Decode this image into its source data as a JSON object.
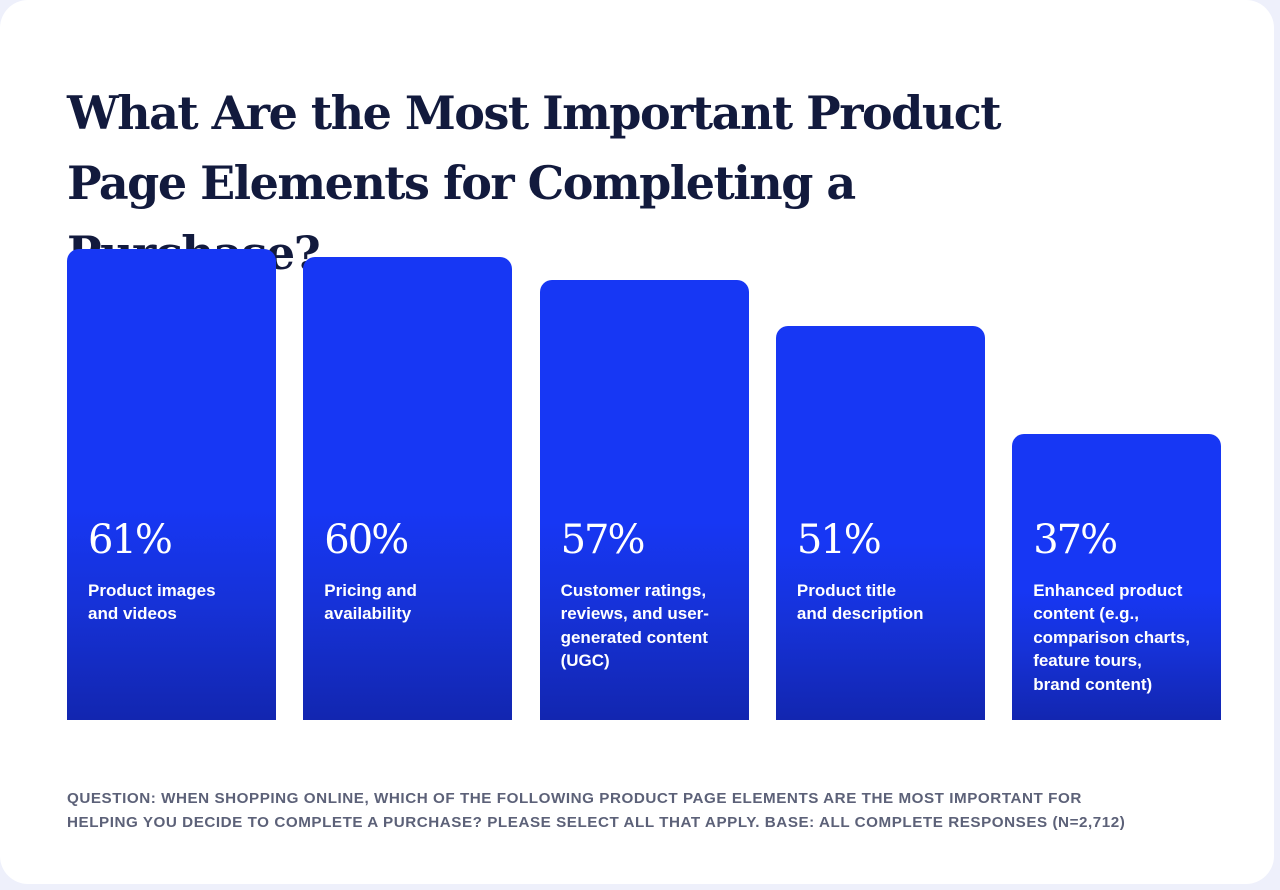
{
  "colors": {
    "bar_top": "#1737f4",
    "bar_bottom": "#1226b0",
    "title": "#121a3d",
    "footnote": "#5c6178",
    "card": "#ffffff",
    "page_background": "#eef0fb"
  },
  "chart_data": {
    "type": "bar",
    "title": "What Are the Most Important Product Page Elements for Completing a Purchase?",
    "unit": "%",
    "ylim": [
      0,
      61
    ],
    "grid": false,
    "categories": [
      "Product images\nand videos",
      "Pricing and\navailability",
      "Customer ratings,\nreviews, and user-\ngenerated content\n(UGC)",
      "Product title\nand description",
      "Enhanced product\ncontent (e.g.,\ncomparison charts,\nfeature tours,\nbrand content)"
    ],
    "values": [
      61,
      60,
      57,
      51,
      37
    ],
    "value_labels": [
      "61%",
      "60%",
      "57%",
      "51%",
      "37%"
    ]
  },
  "footnote": "QUESTION: WHEN SHOPPING ONLINE, WHICH OF THE FOLLOWING PRODUCT PAGE ELEMENTS ARE THE MOST IMPORTANT FOR\nHELPING YOU DECIDE TO COMPLETE A PURCHASE?  PLEASE SELECT ALL THAT APPLY. BASE: ALL COMPLETE RESPONSES (N=2,712)"
}
